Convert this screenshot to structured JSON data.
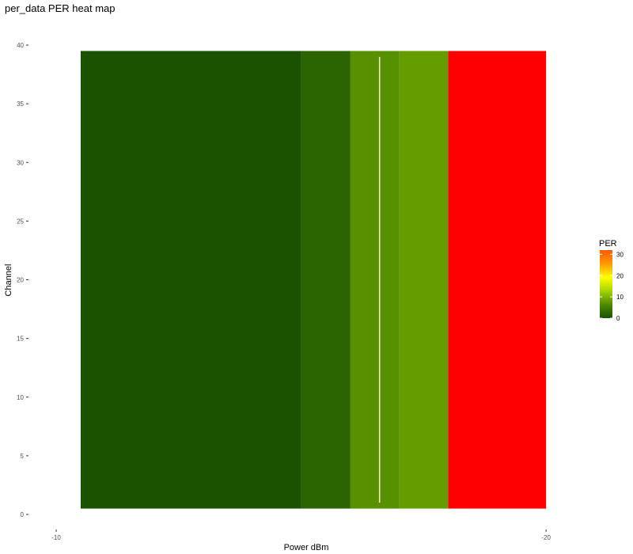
{
  "chart_data": {
    "type": "heatmap",
    "title": "per_data PER heat map",
    "xlabel": "Power dBm",
    "ylabel": "Channel",
    "x_axis_reversed": true,
    "xlim": [
      -9.45,
      -20.45
    ],
    "ylim": [
      0,
      40
    ],
    "x_ticks": [
      -10,
      -20
    ],
    "x_tick_labels": [
      "-10",
      "-20"
    ],
    "y_ticks": [
      0,
      5,
      10,
      15,
      20,
      25,
      30,
      35,
      40
    ],
    "y_tick_labels": [
      "0",
      "5",
      "10",
      "15",
      "20",
      "25",
      "30",
      "35",
      "40"
    ],
    "channel_range": [
      1,
      39
    ],
    "columns": [
      {
        "x_from": -10.5,
        "x_to": -15.0,
        "per": 0
      },
      {
        "x_from": -15.0,
        "x_to": -16.0,
        "per": 2
      },
      {
        "x_from": -16.0,
        "x_to": -17.0,
        "per": 7
      },
      {
        "x_from": -17.0,
        "x_to": -18.0,
        "per": 8
      },
      {
        "x_from": -18.0,
        "x_to": -20.0,
        "per": 30
      }
    ],
    "white_line": {
      "x": -16.6,
      "y_from": 1,
      "y_to": 39
    },
    "legend": {
      "title": "PER",
      "min": 0,
      "max": 32,
      "ticks": [
        0,
        10,
        20,
        30
      ],
      "tick_labels": [
        "0",
        "10",
        "20",
        "30"
      ],
      "colors": [
        "#1a5200",
        "#4f8a00",
        "#a6d400",
        "#ffff00",
        "#ff9900",
        "#ff5a00"
      ],
      "position": "right"
    },
    "grid": false
  }
}
